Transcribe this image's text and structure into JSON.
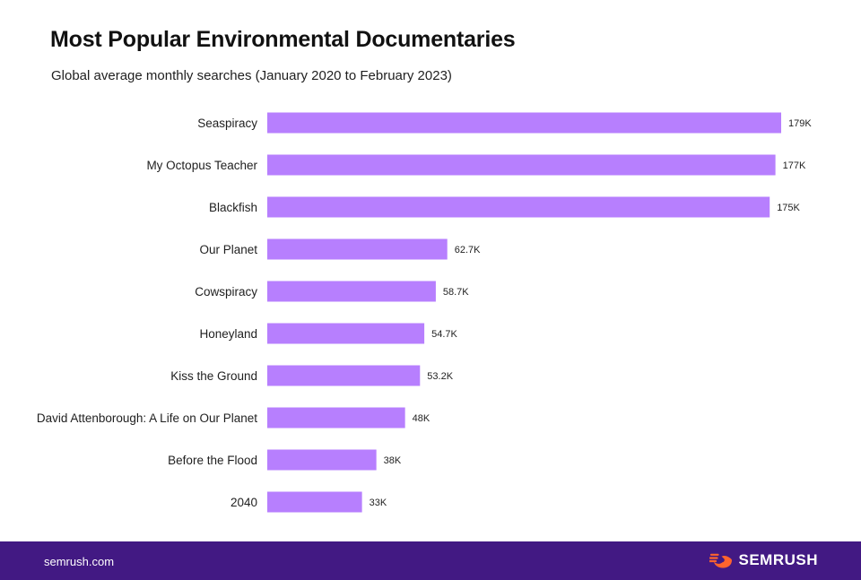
{
  "chart_data": {
    "type": "bar",
    "orientation": "horizontal",
    "title": "Most Popular Environmental Documentaries",
    "subtitle": "Global average monthly searches (January 2020 to February 2023)",
    "categories": [
      "Seaspiracy",
      "My Octopus Teacher",
      "Blackfish",
      "Our Planet",
      "Cowspiracy",
      "Honeyland",
      "Kiss the Ground",
      "David Attenborough: A Life on Our Planet",
      "Before the Flood",
      "2040"
    ],
    "values": [
      179000,
      177000,
      175000,
      62700,
      58700,
      54700,
      53200,
      48000,
      38000,
      33000
    ],
    "data_labels": [
      "179K",
      "177K",
      "175K",
      "62.7K",
      "58.7K",
      "54.7K",
      "53.2K",
      "48K",
      "38K",
      "33K"
    ],
    "xlim": [
      0,
      179000
    ],
    "grid": false,
    "legend": "none",
    "bar_color": "#b77ffe"
  },
  "footer": {
    "site": "semrush.com",
    "brand": "SEMRUSH",
    "brand_icon": "semrush-flame-icon",
    "background": "#421983",
    "icon_color": "#ff642d"
  }
}
